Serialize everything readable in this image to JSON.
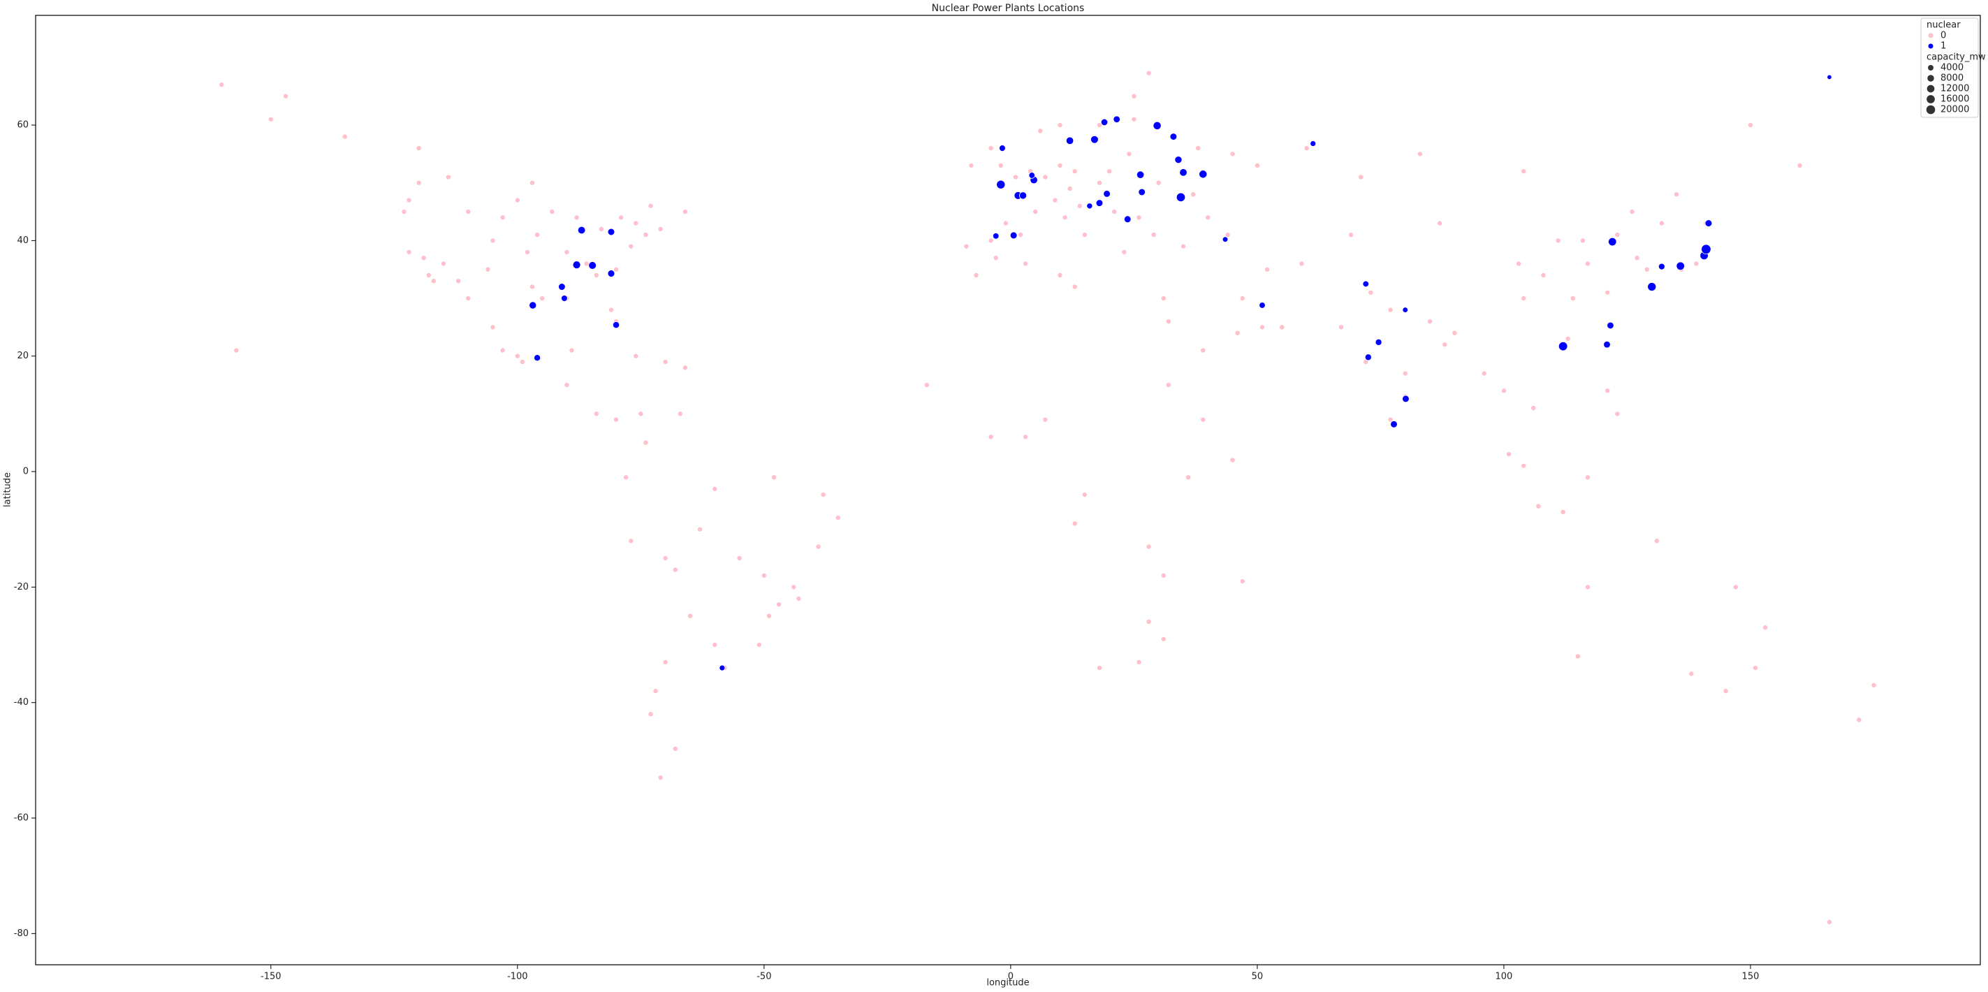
{
  "chart_data": {
    "type": "scatter",
    "title": "Nuclear Power Plants Locations",
    "xlabel": "longitude",
    "ylabel": "latitude",
    "xlim": [
      -197.7,
      196.6
    ],
    "ylim": [
      -85.4,
      79.0
    ],
    "xticks": [
      -150,
      -100,
      -50,
      0,
      50,
      100,
      150
    ],
    "yticks": [
      -80,
      -60,
      -40,
      -20,
      0,
      20,
      40,
      60
    ],
    "grid": false,
    "legend": "upper right",
    "legend_title": "nuclear",
    "series": [
      {
        "name": "0",
        "color": "#ffc0cb",
        "x": [
          -122,
          -122,
          -118,
          -117,
          -112,
          -105,
          -97,
          -95,
          -90,
          -87,
          -84,
          -81,
          -80,
          -77,
          -74,
          -71,
          -83,
          -93,
          -100,
          -110,
          -115,
          -123,
          -120,
          -114,
          -79,
          -73,
          -66,
          -97,
          -106,
          -98,
          -90,
          -86,
          -80,
          -76,
          -88,
          -96,
          -103,
          -119,
          -150,
          -135,
          -147,
          -157,
          -160,
          -120,
          -100,
          -99,
          -103,
          -89,
          -90,
          -84,
          -80,
          -76,
          -66,
          -70,
          -110,
          -105,
          -74,
          -75,
          -67,
          -78,
          -77,
          -70,
          -68,
          -65,
          -70,
          -72,
          -73,
          -58,
          -60,
          -51,
          -49,
          -47,
          -43,
          -44,
          -39,
          -35,
          -38,
          -48,
          -60,
          -55,
          -50,
          -63,
          -68,
          -71,
          -9,
          -4,
          -3,
          2,
          -1,
          2,
          5,
          1,
          -2,
          -4,
          -8,
          4,
          7,
          10,
          12,
          9,
          14,
          11,
          15,
          13,
          18,
          20,
          24,
          21,
          26,
          23,
          30,
          37,
          38,
          30,
          25,
          18,
          10,
          6,
          25,
          28,
          45,
          50,
          40,
          35,
          29,
          44,
          60,
          -7,
          3,
          10,
          13,
          31,
          32,
          -17,
          -4,
          3,
          7,
          36,
          39,
          32,
          15,
          28,
          31,
          28,
          18,
          26,
          31,
          47,
          13,
          45,
          47,
          51,
          55,
          46,
          39,
          52,
          59,
          69,
          71,
          67,
          73,
          77,
          72,
          80,
          77,
          88,
          85,
          80,
          90,
          96,
          100,
          106,
          101,
          104,
          107,
          112,
          117,
          121,
          123,
          104,
          108,
          113,
          116,
          121,
          117,
          114,
          126,
          123,
          111,
          87,
          103,
          127,
          129,
          136,
          139,
          141,
          83,
          104,
          132,
          150,
          160,
          135,
          115,
          138,
          145,
          151,
          153,
          147,
          131,
          175,
          172,
          117,
          166
        ],
        "values": [
          47,
          38,
          34,
          33,
          33,
          40,
          32,
          30,
          30,
          42,
          34,
          28,
          26,
          39,
          41,
          42,
          42,
          45,
          47,
          45,
          36,
          45,
          50,
          51,
          44,
          46,
          45,
          50,
          35,
          38,
          38,
          36,
          35,
          43,
          44,
          41,
          44,
          37,
          61,
          58,
          65,
          21,
          67,
          56,
          20,
          19,
          21,
          21,
          15,
          10,
          9,
          20,
          18,
          19,
          30,
          25,
          5,
          10,
          10,
          -1,
          -12,
          -15,
          -17,
          -25,
          -33,
          -38,
          -42,
          -34,
          -30,
          -30,
          -25,
          -23,
          -22,
          -20,
          -13,
          -8,
          -4,
          -1,
          -3,
          -15,
          -18,
          -10,
          -48,
          -53,
          39,
          40,
          37,
          41,
          43,
          48,
          45,
          51,
          53,
          56,
          53,
          52,
          51,
          53,
          49,
          47,
          46,
          44,
          41,
          52,
          50,
          52,
          55,
          45,
          44,
          38,
          50,
          48,
          56,
          60,
          61,
          60,
          60,
          59,
          65,
          69,
          55,
          53,
          44,
          39,
          41,
          41,
          56,
          34,
          36,
          34,
          32,
          30,
          26,
          15,
          6,
          6,
          9,
          -1,
          9,
          15,
          -4,
          -13,
          -18,
          -26,
          -34,
          -33,
          -29,
          -19,
          -9,
          2,
          30,
          25,
          25,
          24,
          21,
          35,
          36,
          41,
          51,
          25,
          31,
          28,
          19,
          13,
          9,
          22,
          26,
          17,
          24,
          17,
          14,
          11,
          3,
          1,
          -6,
          -7,
          -1,
          14,
          10,
          30,
          34,
          23,
          40,
          31,
          36,
          30,
          45,
          41,
          40,
          43,
          36,
          37,
          35,
          35,
          36,
          43,
          55,
          52,
          43,
          60,
          53,
          48,
          -32,
          -35,
          -38,
          -34,
          -27,
          -20,
          -12,
          -37,
          -43,
          -20,
          -78
        ]
      },
      {
        "name": "1",
        "color": "#0000ff",
        "x": [
          -96.9,
          -91,
          -90.5,
          -88,
          -84.8,
          -81,
          -80,
          -81,
          -87,
          -96,
          -58.5,
          -1.7,
          -2,
          1.5,
          2.5,
          4.7,
          4.3,
          0.6,
          -3,
          12,
          17,
          19,
          21.5,
          29.7,
          33,
          34,
          35,
          34.5,
          26.3,
          26.6,
          23.7,
          18,
          16,
          19.5,
          39,
          43.5,
          51,
          61.3,
          72,
          72.5,
          74.6,
          80,
          80.1,
          77.7,
          112,
          120.9,
          121.6,
          122,
          130,
          132,
          135.8,
          140.6,
          141,
          141.5,
          166
        ],
        "values": [
          28.8,
          32,
          30,
          35.8,
          35.7,
          34.3,
          25.4,
          41.5,
          41.8,
          19.7,
          -34,
          56,
          49.7,
          47.8,
          47.8,
          50.5,
          51.3,
          40.9,
          40.8,
          57.3,
          57.5,
          60.5,
          61,
          59.9,
          58,
          54,
          51.8,
          47.5,
          51.4,
          48.4,
          43.7,
          46.5,
          46,
          48.1,
          51.5,
          40.2,
          28.8,
          56.8,
          32.5,
          19.8,
          22.4,
          28,
          12.6,
          8.2,
          21.7,
          22,
          25.3,
          39.8,
          32,
          35.5,
          35.6,
          37.4,
          38.5,
          43,
          68.3
        ],
        "sizes": [
          2500,
          2000,
          1200,
          3500,
          3300,
          2200,
          1600,
          2000,
          3000,
          1400,
          600,
          1200,
          5400,
          3600,
          2600,
          3000,
          1000,
          2100,
          1000,
          2900,
          3300,
          1800,
          1800,
          4000,
          2000,
          2500,
          3000,
          6000,
          2800,
          2000,
          2000,
          2000,
          700,
          2000,
          4000,
          400,
          1000,
          600,
          1000,
          1400,
          1400,
          400,
          2000,
          2000,
          6100,
          1900,
          1900,
          4500,
          5300,
          1300,
          4500,
          4400,
          8200,
          2100,
          50
        ]
      }
    ],
    "size_legend": {
      "title": "capacity_mw",
      "color": "#333333",
      "values": [
        4000,
        8000,
        12000,
        16000,
        20000
      ]
    }
  }
}
